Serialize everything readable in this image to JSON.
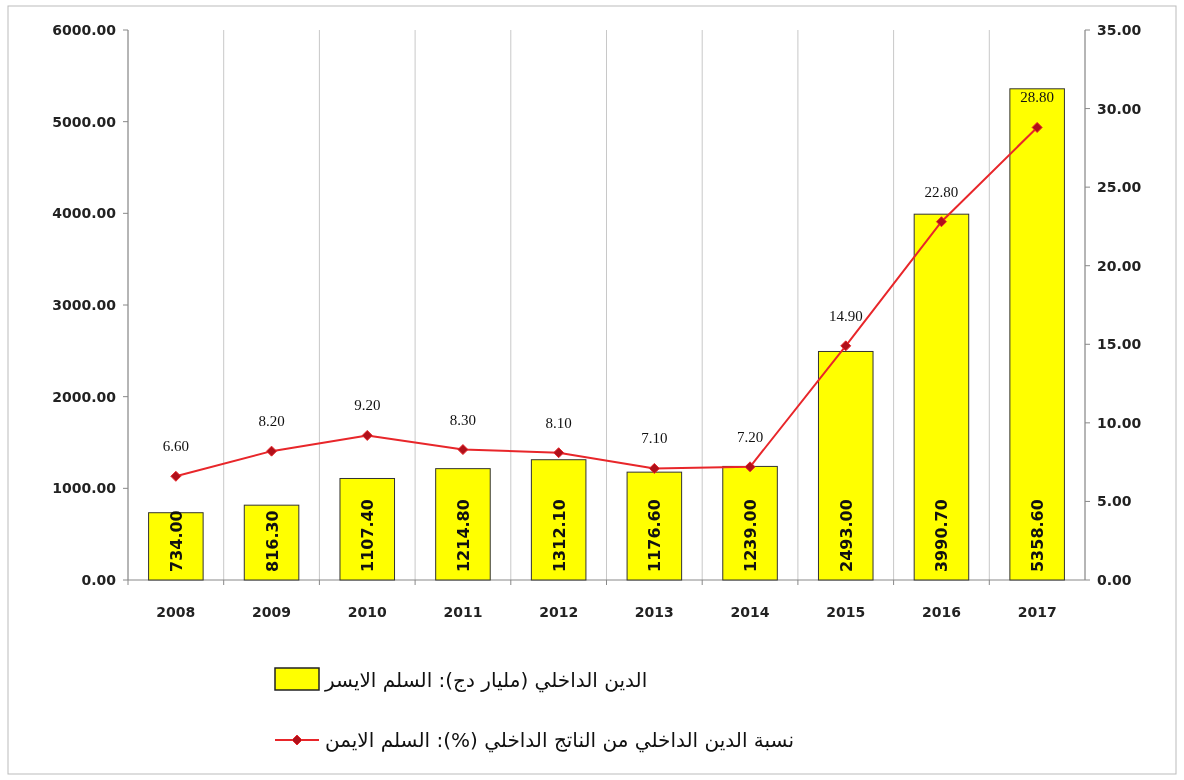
{
  "chart_data": {
    "type": "bar",
    "categories": [
      "2008",
      "2009",
      "2010",
      "2011",
      "2012",
      "2013",
      "2014",
      "2015",
      "2016",
      "2017"
    ],
    "series": [
      {
        "name": "الدين الداخلي (مليار دج): السلم الايسر",
        "color": "#ffff00",
        "values": [
          734.0,
          816.3,
          1107.4,
          1214.8,
          1312.1,
          1176.6,
          1239.0,
          2493.0,
          3990.7,
          5358.6
        ],
        "value_labels": [
          "734.00",
          "816.30",
          "1107.40",
          "1214.80",
          "1312.10",
          "1176.60",
          "1239.00",
          "2493.00",
          "3990.70",
          "5358.60"
        ]
      },
      {
        "name": "نسبة الدين الداخلي من الناتج الداخلي (%): السلم الايمن",
        "type": "line",
        "axis": "y2",
        "color": "#e8262a",
        "marker": "diamond",
        "values": [
          6.6,
          8.2,
          9.2,
          8.3,
          8.1,
          7.1,
          7.2,
          14.9,
          22.8,
          28.8
        ],
        "value_labels": [
          "6.60",
          "8.20",
          "9.20",
          "8.30",
          "8.10",
          "7.10",
          "7.20",
          "14.90",
          "22.80",
          "28.80"
        ]
      }
    ],
    "ylim": [
      0,
      6000
    ],
    "yticks": [
      {
        "value": 0,
        "label": "0.00"
      },
      {
        "value": 1000,
        "label": "1000.00"
      },
      {
        "value": 2000,
        "label": "2000.00"
      },
      {
        "value": 3000,
        "label": "3000.00"
      },
      {
        "value": 4000,
        "label": "4000.00"
      },
      {
        "value": 5000,
        "label": "5000.00"
      },
      {
        "value": 6000,
        "label": "6000.00"
      }
    ],
    "y2lim": [
      0,
      35
    ],
    "y2ticks": [
      {
        "value": 0,
        "label": "0.00"
      },
      {
        "value": 5,
        "label": "5.00"
      },
      {
        "value": 10,
        "label": "10.00"
      },
      {
        "value": 15,
        "label": "15.00"
      },
      {
        "value": 20,
        "label": "20.00"
      },
      {
        "value": 25,
        "label": "25.00"
      },
      {
        "value": 30,
        "label": "30.00"
      },
      {
        "value": 35,
        "label": "35.00"
      }
    ],
    "grid": "x",
    "legend": "bottom"
  }
}
